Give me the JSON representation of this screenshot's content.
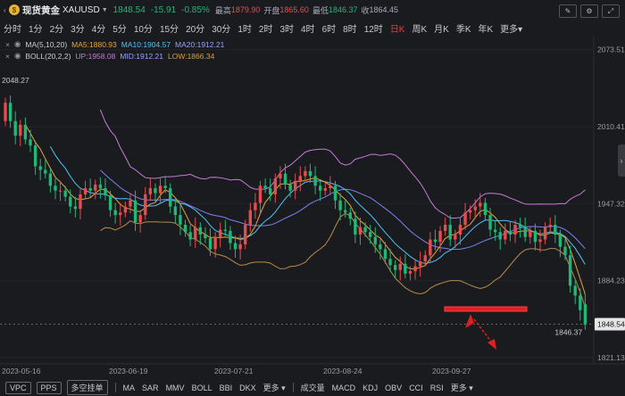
{
  "header": {
    "name": "现货黄金",
    "symbol": "XAUUSD",
    "price": "1848.54",
    "change": "-15.91",
    "change_pct": "-0.85%",
    "high_label": "最高",
    "high": "1879.90",
    "open_label": "开盘",
    "open": "1865.60",
    "low_label": "最低",
    "low": "1846.37",
    "prev_label": "收",
    "prev": "1864.45"
  },
  "timeframes": [
    "分时",
    "1分",
    "2分",
    "3分",
    "4分",
    "5分",
    "10分",
    "15分",
    "20分",
    "30分",
    "1时",
    "2时",
    "3时",
    "4时",
    "6时",
    "8时",
    "12时",
    "日K",
    "周K",
    "月K",
    "季K",
    "年K",
    "更多"
  ],
  "active_timeframe": "日K",
  "indicators": {
    "ma": {
      "name": "MA(5,10,20)",
      "ma5": "MA5:1880.93",
      "ma10": "MA10:1904.57",
      "ma20": "MA20:1912.21"
    },
    "boll": {
      "name": "BOLL(20,2,2)",
      "up": "UP:1958.08",
      "mid": "MID:1912.21",
      "low": "LOW:1866.34"
    }
  },
  "bottom": {
    "tags": [
      "VPC",
      "PPS",
      "多空挂单"
    ],
    "main_inds": [
      "MA",
      "SAR",
      "MMV",
      "BOLL",
      "BBI",
      "DKX",
      "更多"
    ],
    "sub_inds": [
      "成交量",
      "MACD",
      "KDJ",
      "OBV",
      "CCI",
      "RSI",
      "更多"
    ]
  },
  "colors": {
    "up": "#e84d4d",
    "down": "#1fb877",
    "ma5": "#e8a53a",
    "ma10": "#4fc3f7",
    "ma20": "#7b83f0",
    "boll": "#c77ad9",
    "boll_low": "#b98a4a",
    "bg": "#1a1b1f"
  },
  "chart_data": {
    "type": "candlestick",
    "ylim": [
      1816,
      2085
    ],
    "y_ticks": [
      "2073.51",
      "2010.41",
      "1947.32",
      "1884.23",
      "1821.13"
    ],
    "x_ticks": [
      "2023-05-16",
      "2023-06-19",
      "2023-07-21",
      "2023-08-24",
      "2023-09-27"
    ],
    "current_price": "1848.54",
    "max_label": "2048.27",
    "min_label": "1846.37",
    "closes": [
      2030,
      2015,
      2003,
      2012,
      2000,
      1995,
      1978,
      1975,
      1972,
      1962,
      1958,
      1958,
      1953,
      1945,
      1943,
      1955,
      1960,
      1958,
      1963,
      1960,
      1954,
      1942,
      1938,
      1940,
      1945,
      1950,
      1932,
      1938,
      1955,
      1960,
      1956,
      1962,
      1960,
      1945,
      1938,
      1930,
      1924,
      1918,
      1928,
      1922,
      1919,
      1910,
      1920,
      1926,
      1925,
      1915,
      1910,
      1914,
      1930,
      1942,
      1948,
      1962,
      1960,
      1955,
      1968,
      1972,
      1963,
      1958,
      1966,
      1970,
      1974,
      1970,
      1962,
      1958,
      1960,
      1962,
      1950,
      1942,
      1940,
      1935,
      1922,
      1928,
      1924,
      1920,
      1914,
      1910,
      1902,
      1897,
      1893,
      1898,
      1890,
      1892,
      1896,
      1900,
      1905,
      1918,
      1916,
      1925,
      1930,
      1918,
      1922,
      1930,
      1940,
      1942,
      1945,
      1948,
      1938,
      1926,
      1924,
      1918,
      1925,
      1922,
      1930,
      1928,
      1920,
      1925,
      1916,
      1918,
      1928,
      1930,
      1922,
      1912,
      1905,
      1880,
      1872,
      1860,
      1848
    ],
    "opens": [
      2015,
      2030,
      2015,
      2003,
      2012,
      2000,
      1995,
      1978,
      1975,
      1972,
      1962,
      1958,
      1958,
      1953,
      1945,
      1943,
      1955,
      1960,
      1958,
      1963,
      1960,
      1954,
      1942,
      1938,
      1940,
      1945,
      1950,
      1932,
      1938,
      1955,
      1960,
      1956,
      1962,
      1960,
      1945,
      1938,
      1930,
      1924,
      1918,
      1928,
      1922,
      1919,
      1910,
      1920,
      1926,
      1925,
      1915,
      1910,
      1914,
      1930,
      1942,
      1948,
      1962,
      1960,
      1955,
      1968,
      1972,
      1963,
      1958,
      1966,
      1970,
      1974,
      1970,
      1962,
      1958,
      1960,
      1962,
      1950,
      1942,
      1940,
      1935,
      1922,
      1928,
      1924,
      1920,
      1914,
      1910,
      1902,
      1897,
      1893,
      1898,
      1890,
      1892,
      1896,
      1900,
      1905,
      1918,
      1916,
      1925,
      1930,
      1918,
      1922,
      1930,
      1940,
      1942,
      1945,
      1948,
      1938,
      1926,
      1924,
      1918,
      1925,
      1922,
      1930,
      1928,
      1920,
      1925,
      1916,
      1918,
      1928,
      1930,
      1922,
      1912,
      1905,
      1880,
      1872,
      1865
    ]
  }
}
